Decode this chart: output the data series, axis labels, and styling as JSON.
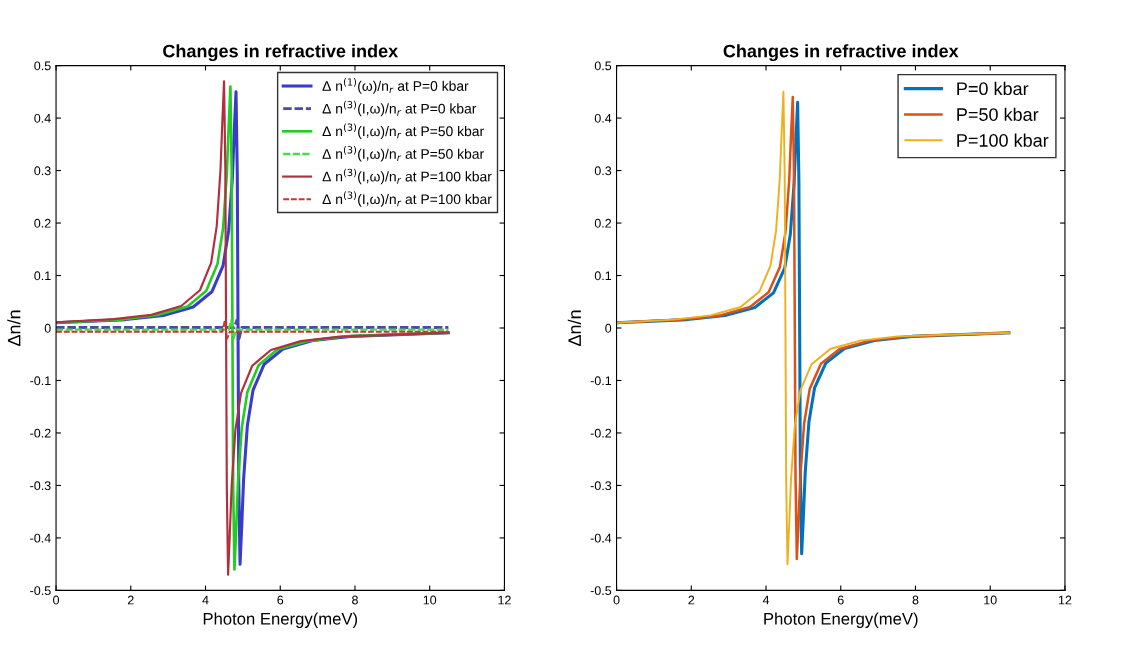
{
  "chart_data": [
    {
      "type": "line",
      "title": "Changes in refractive index",
      "xlabel": "Photon Energy(meV)",
      "ylabel": "Δn/n",
      "xlim": [
        0,
        12
      ],
      "xticks": [
        0,
        2,
        4,
        6,
        8,
        10,
        12
      ],
      "ylim": [
        -0.5,
        0.5
      ],
      "yticks": [
        -0.5,
        -0.4,
        -0.3,
        -0.2,
        -0.1,
        0,
        0.1,
        0.2,
        0.3,
        0.4,
        0.5
      ],
      "grid": false,
      "legend": "top right",
      "series": [
        {
          "name": "Δ n$^{(1)}$(ω)/n$_{r}$ at P=0 kbar",
          "color": "#3a3acc",
          "line_style": "solid",
          "x": [
            0,
            1.87,
            2.87,
            3.67,
            4.17,
            4.47,
            4.62,
            4.72,
            4.77,
            4.816,
            4.85,
            4.87,
            4.89,
            4.924,
            4.97,
            5.02,
            5.12,
            5.27,
            5.57,
            6.07,
            6.87,
            7.87,
            10.5
          ],
          "values": [
            0.01,
            0.016,
            0.024,
            0.04,
            0.069,
            0.119,
            0.186,
            0.287,
            0.376,
            0.45,
            0.293,
            0,
            -0.293,
            -0.45,
            -0.376,
            -0.287,
            -0.186,
            -0.119,
            -0.069,
            -0.04,
            -0.024,
            -0.016,
            -0.009
          ]
        },
        {
          "name": "Δ n$^{(3)}$(I,ω)/n$_{r}$ at P=0 kbar",
          "color": "#4a4aa8",
          "line_style": "dashed",
          "x": [
            0,
            4.77,
            4.84,
            4.87,
            4.9,
            4.97,
            10.5
          ],
          "values": [
            0.001,
            0.001,
            0.015,
            0.001,
            -0.02,
            0.001,
            0.001
          ]
        },
        {
          "name": "Δ n$^{(3)}$(I,ω)/n$_{r}$ at P=50 kbar",
          "color": "#22cc22",
          "line_style": "solid",
          "x": [
            0,
            1.72,
            2.72,
            3.52,
            4.02,
            4.32,
            4.47,
            4.57,
            4.62,
            4.666,
            4.7,
            4.72,
            4.74,
            4.774,
            4.82,
            4.87,
            4.97,
            5.12,
            5.42,
            5.92,
            6.72,
            7.72,
            10.5
          ],
          "values": [
            0.01,
            0.016,
            0.025,
            0.041,
            0.071,
            0.122,
            0.19,
            0.293,
            0.384,
            0.46,
            0.299,
            0,
            -0.299,
            -0.46,
            -0.384,
            -0.293,
            -0.19,
            -0.122,
            -0.071,
            -0.041,
            -0.025,
            -0.016,
            -0.009
          ]
        },
        {
          "name": "Δ n$^{(3)}$(I,ω)/n$_{r}$ at P=50 kbar",
          "color": "#44dd44",
          "line_style": "dashed",
          "x": [
            0,
            4.62,
            4.69,
            4.72,
            4.75,
            4.82,
            10.5
          ],
          "values": [
            -0.003,
            -0.003,
            0.015,
            -0.003,
            -0.02,
            -0.003,
            -0.003
          ]
        },
        {
          "name": "Δ n$^{(3)}$(I,ω)/n$_{r}$ at P=100 kbar",
          "color": "#b03040",
          "line_style": "solid",
          "x": [
            0,
            1.55,
            2.55,
            3.35,
            3.85,
            4.15,
            4.3,
            4.4,
            4.45,
            4.496,
            4.53,
            4.55,
            4.57,
            4.604,
            4.65,
            4.7,
            4.8,
            4.95,
            5.25,
            5.75,
            6.55,
            7.55,
            10.5
          ],
          "values": [
            0.011,
            0.017,
            0.025,
            0.042,
            0.072,
            0.124,
            0.194,
            0.3,
            0.393,
            0.47,
            0.306,
            0,
            -0.306,
            -0.47,
            -0.393,
            -0.3,
            -0.194,
            -0.124,
            -0.072,
            -0.042,
            -0.025,
            -0.017,
            -0.009
          ]
        },
        {
          "name": "Δ n$^{(3)}$(I,ω)/n$_{r}$ at P=100 kbar",
          "color": "#cc3333",
          "line_style": "dashed",
          "x": [
            0,
            4.45,
            4.52,
            4.55,
            4.58,
            4.65,
            10.5
          ],
          "values": [
            -0.007,
            -0.007,
            0.015,
            -0.007,
            -0.02,
            -0.007,
            -0.007
          ]
        }
      ]
    },
    {
      "type": "line",
      "title": "Changes in refractive index",
      "xlabel": "Photon Energy(meV)",
      "ylabel": "Δn/n",
      "xlim": [
        0,
        12
      ],
      "xticks": [
        0,
        2,
        4,
        6,
        8,
        10,
        12
      ],
      "ylim": [
        -0.5,
        0.5
      ],
      "yticks": [
        -0.5,
        -0.4,
        -0.3,
        -0.2,
        -0.1,
        0,
        0.1,
        0.2,
        0.3,
        0.4,
        0.5
      ],
      "grid": false,
      "legend": "top right",
      "series": [
        {
          "name": "P=0 kbar",
          "color": "#0072bd",
          "line_style": "solid",
          "x": [
            0,
            1.9,
            2.9,
            3.7,
            4.2,
            4.5,
            4.65,
            4.75,
            4.8,
            4.846,
            4.88,
            4.9,
            4.92,
            4.954,
            5.0,
            5.05,
            5.15,
            5.3,
            5.6,
            6.1,
            6.9,
            7.9,
            10.5
          ],
          "values": [
            0.01,
            0.016,
            0.024,
            0.039,
            0.067,
            0.114,
            0.178,
            0.274,
            0.359,
            0.43,
            0.28,
            0,
            -0.28,
            -0.43,
            -0.359,
            -0.274,
            -0.178,
            -0.114,
            -0.067,
            -0.039,
            -0.024,
            -0.016,
            -0.009
          ]
        },
        {
          "name": "P=50 kbar",
          "color": "#d95319",
          "line_style": "solid",
          "x": [
            0,
            1.77,
            2.77,
            3.57,
            4.07,
            4.37,
            4.52,
            4.62,
            4.67,
            4.716,
            4.75,
            4.77,
            4.79,
            4.824,
            4.87,
            4.92,
            5.02,
            5.17,
            5.47,
            5.97,
            6.77,
            7.77,
            10.5
          ],
          "values": [
            0.01,
            0.016,
            0.024,
            0.04,
            0.068,
            0.116,
            0.182,
            0.281,
            0.368,
            0.44,
            0.286,
            0,
            -0.286,
            -0.44,
            -0.368,
            -0.281,
            -0.182,
            -0.116,
            -0.068,
            -0.04,
            -0.024,
            -0.016,
            -0.009
          ]
        },
        {
          "name": "P=100 kbar",
          "color": "#edb120",
          "line_style": "solid",
          "x": [
            0,
            1.52,
            2.52,
            3.32,
            3.82,
            4.12,
            4.27,
            4.37,
            4.42,
            4.466,
            4.5,
            4.52,
            4.54,
            4.574,
            4.62,
            4.67,
            4.77,
            4.92,
            5.22,
            5.72,
            6.52,
            7.52,
            10.5
          ],
          "values": [
            0.01,
            0.016,
            0.024,
            0.04,
            0.069,
            0.119,
            0.186,
            0.287,
            0.376,
            0.45,
            0.293,
            0,
            -0.293,
            -0.45,
            -0.376,
            -0.287,
            -0.186,
            -0.119,
            -0.069,
            -0.04,
            -0.024,
            -0.016,
            -0.009
          ]
        }
      ]
    }
  ]
}
